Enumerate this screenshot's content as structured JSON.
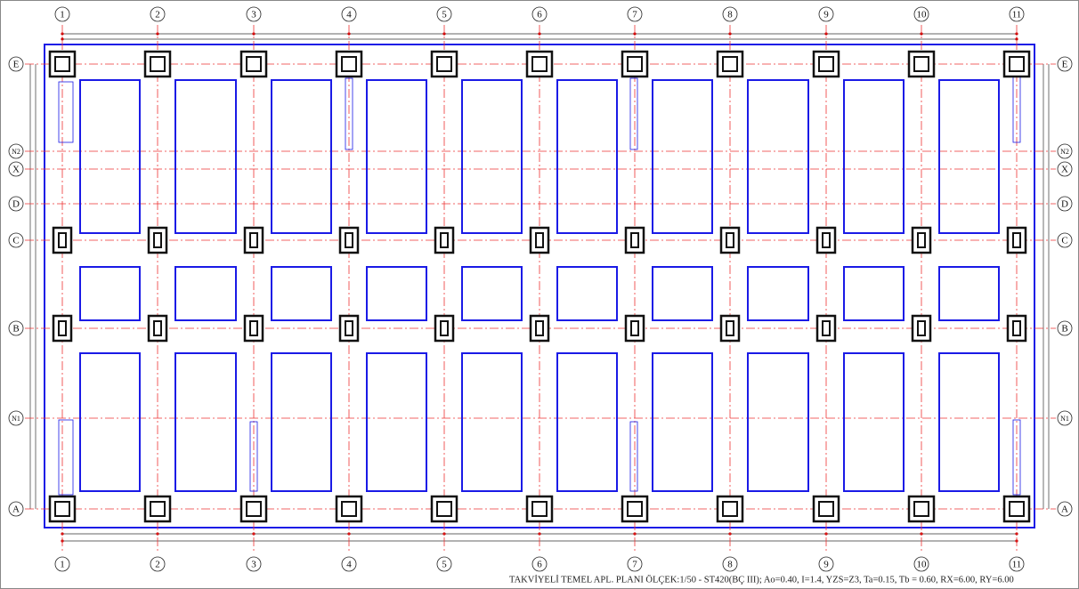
{
  "grid": {
    "columns": [
      "1",
      "2",
      "3",
      "4",
      "5",
      "6",
      "7",
      "8",
      "9",
      "10",
      "11"
    ],
    "rows": [
      "E",
      "N2",
      "X",
      "D",
      "C",
      "B",
      "N1",
      "A"
    ]
  },
  "footer": {
    "title": "TAKVİYELİ TEMEL APL. PLANI ÖLÇEK:1/50  - ST420(BÇ III);     Ao=0.40,   I=1.4,   YZS=Z3,   Ta=0.15,  Tb = 0.60,   RX=6.00,   RY=6.00"
  }
}
